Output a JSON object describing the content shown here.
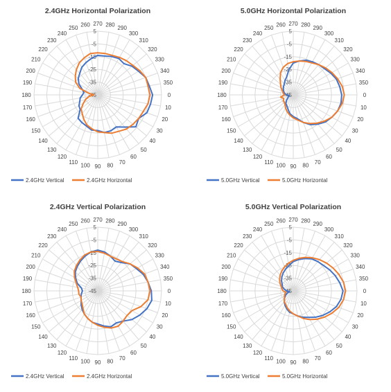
{
  "colors": {
    "vertical": "#4472C4",
    "horizontal": "#ED7D31",
    "grid": "#D9D9D9"
  },
  "chart_data": [
    {
      "type": "radar",
      "title": "2.4GHz Horizontal Polarization",
      "angle_ticks": [
        "0",
        "10",
        "20",
        "30",
        "40",
        "50",
        "60",
        "70",
        "80",
        "90",
        "100",
        "110",
        "120",
        "130",
        "140",
        "150",
        "160",
        "170",
        "180",
        "190",
        "200",
        "210",
        "220",
        "230",
        "240",
        "250",
        "260",
        "270",
        "280",
        "290",
        "300",
        "310",
        "320",
        "330",
        "340",
        "350"
      ],
      "radial_ticks": [
        "5",
        "-5",
        "-15",
        "-25",
        "-35",
        "-45"
      ],
      "rlim": [
        -45,
        5
      ],
      "legend": "bottom",
      "series": [
        {
          "name": "2.4GHz Vertical",
          "values": [
            -2,
            -3,
            -4,
            -8,
            -6,
            -12,
            -16,
            -15,
            -15,
            -17,
            -17,
            -19,
            -20,
            -21,
            -27,
            -28,
            -30,
            -31,
            -33,
            -34,
            -32,
            -28,
            -25,
            -23,
            -20,
            -18,
            -16,
            -14,
            -14,
            -13,
            -12,
            -13,
            -10,
            -8,
            -5,
            -4
          ]
        },
        {
          "name": "2.4GHz Horizontal",
          "values": [
            -4,
            -5,
            -7,
            -8,
            -9,
            -10,
            -12,
            -13,
            -15,
            -16,
            -18,
            -20,
            -23,
            -26,
            -28,
            -32,
            -35,
            -38,
            -42,
            -38,
            -30,
            -25,
            -22,
            -19,
            -16,
            -14,
            -12,
            -12,
            -12,
            -12,
            -11,
            -10,
            -9,
            -7,
            -5,
            -5
          ]
        }
      ]
    },
    {
      "type": "radar",
      "title": "5.0GHz Horizontal Polarization",
      "angle_ticks": [
        "0",
        "10",
        "20",
        "30",
        "40",
        "50",
        "60",
        "70",
        "80",
        "90",
        "100",
        "110",
        "120",
        "130",
        "140",
        "150",
        "160",
        "170",
        "180",
        "190",
        "200",
        "210",
        "220",
        "230",
        "240",
        "250",
        "260",
        "270",
        "280",
        "290",
        "300",
        "310",
        "320",
        "330",
        "340",
        "350"
      ],
      "radial_ticks": [
        "5",
        "-5",
        "-15",
        "-25",
        "-35",
        "-45"
      ],
      "rlim": [
        -45,
        5
      ],
      "legend": "bottom",
      "series": [
        {
          "name": "5.0GHz Vertical",
          "values": [
            -7,
            -7,
            -8,
            -10,
            -12,
            -15,
            -18,
            -22,
            -26,
            -28,
            -30,
            -33,
            -35,
            -36,
            -38,
            -40,
            -41,
            -42,
            -40,
            -38,
            -37,
            -36,
            -35,
            -34,
            -32,
            -30,
            -25,
            -20,
            -18,
            -16,
            -15,
            -14,
            -13,
            -11,
            -9,
            -8
          ]
        },
        {
          "name": "5.0GHz Horizontal",
          "values": [
            -5,
            -6,
            -8,
            -10,
            -13,
            -16,
            -19,
            -22,
            -25,
            -27,
            -29,
            -31,
            -33,
            -35,
            -36,
            -36,
            -37,
            -35,
            -38,
            -37,
            -36,
            -34,
            -32,
            -29,
            -25,
            -22,
            -20,
            -19,
            -18,
            -17,
            -16,
            -14,
            -12,
            -10,
            -8,
            -6
          ]
        }
      ]
    },
    {
      "type": "radar",
      "title": "2.4GHz Vertical Polarization",
      "angle_ticks": [
        "0",
        "10",
        "20",
        "30",
        "40",
        "50",
        "60",
        "70",
        "80",
        "90",
        "100",
        "110",
        "120",
        "130",
        "140",
        "150",
        "160",
        "170",
        "180",
        "190",
        "200",
        "210",
        "220",
        "230",
        "240",
        "250",
        "260",
        "270",
        "280",
        "290",
        "300",
        "310",
        "320",
        "330",
        "340",
        "350"
      ],
      "radial_ticks": [
        "5",
        "-5",
        "-15",
        "-25",
        "-35",
        "-45"
      ],
      "rlim": [
        -45,
        5
      ],
      "legend": "bottom",
      "series": [
        {
          "name": "2.4GHz Vertical",
          "values": [
            -3,
            -2,
            -4,
            -7,
            -10,
            -14,
            -16,
            -15,
            -17,
            -19,
            -20,
            -22,
            -24,
            -26,
            -28,
            -30,
            -31,
            -32,
            -33,
            -32,
            -28,
            -25,
            -22,
            -20,
            -18,
            -16,
            -14,
            -13,
            -14,
            -16,
            -18,
            -16,
            -12,
            -10,
            -7,
            -5
          ]
        },
        {
          "name": "2.4GHz Horizontal",
          "values": [
            -4,
            -5,
            -9,
            -14,
            -15,
            -14,
            -13,
            -14,
            -16,
            -18,
            -20,
            -22,
            -24,
            -27,
            -29,
            -30,
            -31,
            -30,
            -30,
            -29,
            -27,
            -24,
            -21,
            -19,
            -17,
            -15,
            -14,
            -14,
            -15,
            -16,
            -16,
            -15,
            -12,
            -9,
            -6,
            -5
          ]
        }
      ]
    },
    {
      "type": "radar",
      "title": "5.0GHz Vertical Polarization",
      "angle_ticks": [
        "0",
        "10",
        "20",
        "30",
        "40",
        "50",
        "60",
        "70",
        "80",
        "90",
        "100",
        "110",
        "120",
        "130",
        "140",
        "150",
        "160",
        "170",
        "180",
        "190",
        "200",
        "210",
        "220",
        "230",
        "240",
        "250",
        "260",
        "270",
        "280",
        "290",
        "300",
        "310",
        "320",
        "330",
        "340",
        "350"
      ],
      "radial_ticks": [
        "5",
        "-5",
        "-15",
        "-25",
        "-35",
        "-45"
      ],
      "rlim": [
        -45,
        5
      ],
      "legend": "bottom",
      "series": [
        {
          "name": "5.0GHz Vertical",
          "values": [
            -6,
            -7,
            -9,
            -12,
            -15,
            -18,
            -21,
            -23,
            -25,
            -27,
            -28,
            -30,
            -32,
            -34,
            -36,
            -38,
            -40,
            -42,
            -40,
            -38,
            -36,
            -35,
            -33,
            -31,
            -29,
            -27,
            -25,
            -22,
            -20,
            -18,
            -16,
            -15,
            -14,
            -12,
            -10,
            -8
          ]
        },
        {
          "name": "5.0GHz Horizontal",
          "values": [
            -4,
            -5,
            -7,
            -10,
            -13,
            -16,
            -19,
            -22,
            -25,
            -27,
            -29,
            -31,
            -33,
            -34,
            -36,
            -37,
            -38,
            -39,
            -37,
            -36,
            -35,
            -33,
            -31,
            -29,
            -27,
            -25,
            -23,
            -21,
            -19,
            -17,
            -15,
            -13,
            -11,
            -9,
            -7,
            -5
          ]
        }
      ]
    }
  ]
}
